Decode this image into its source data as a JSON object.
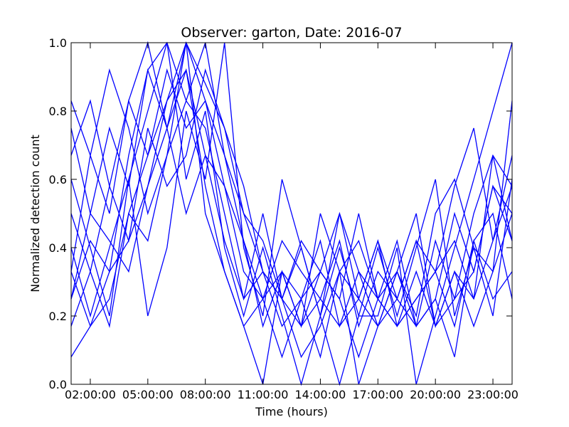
{
  "chart_data": {
    "type": "line",
    "title": "Observer: garton, Date: 2016-07",
    "xlabel": "Time (hours)",
    "ylabel": "Normalized detection count",
    "series_color": "#0000ff",
    "x_range_hours": [
      1,
      24
    ],
    "xlim_hours": [
      1,
      24
    ],
    "ylim": [
      0,
      1
    ],
    "grid": false,
    "legend": "none",
    "x_ticks": [
      {
        "hour": 2,
        "label": "02:00:00"
      },
      {
        "hour": 5,
        "label": "05:00:00"
      },
      {
        "hour": 8,
        "label": "08:00:00"
      },
      {
        "hour": 11,
        "label": "11:00:00"
      },
      {
        "hour": 14,
        "label": "14:00:00"
      },
      {
        "hour": 17,
        "label": "17:00:00"
      },
      {
        "hour": 20,
        "label": "20:00:00"
      },
      {
        "hour": 23,
        "label": "23:00:00"
      }
    ],
    "y_ticks": [
      {
        "value": 0.0,
        "label": "0.0"
      },
      {
        "value": 0.2,
        "label": "0.2"
      },
      {
        "value": 0.4,
        "label": "0.4"
      },
      {
        "value": 0.6,
        "label": "0.6"
      },
      {
        "value": 0.8,
        "label": "0.8"
      },
      {
        "value": 1.0,
        "label": "1.0"
      }
    ],
    "series": [
      {
        "values": [
          0.33,
          0.67,
          0.5,
          0.83,
          1.0,
          0.75,
          1.0,
          0.88,
          0.75,
          0.5,
          0.33,
          0.25,
          0.4,
          0.2,
          0.5,
          0.33,
          0.17,
          0.33,
          0.2,
          0.5,
          0.6,
          0.4,
          0.33,
          0.5
        ]
      },
      {
        "values": [
          0.25,
          0.5,
          0.75,
          0.58,
          0.92,
          1.0,
          0.83,
          1.0,
          0.67,
          0.42,
          0.17,
          0.33,
          0.25,
          0.08,
          0.33,
          0.25,
          0.42,
          0.17,
          0.25,
          0.33,
          0.58,
          0.75,
          0.42,
          0.67
        ]
      },
      {
        "values": [
          0.6,
          0.4,
          0.2,
          0.6,
          0.8,
          1.0,
          0.6,
          0.8,
          0.4,
          0.2,
          0.4,
          0.2,
          0.0,
          0.2,
          0.4,
          0.2,
          0.2,
          0.4,
          0.0,
          0.2,
          0.4,
          0.6,
          0.8,
          1.0
        ]
      },
      {
        "values": [
          0.08,
          0.17,
          0.33,
          0.42,
          0.58,
          0.75,
          0.92,
          0.67,
          0.58,
          0.33,
          0.25,
          0.33,
          0.17,
          0.25,
          0.42,
          0.17,
          0.33,
          0.25,
          0.17,
          0.42,
          0.25,
          0.33,
          0.58,
          0.42
        ]
      },
      {
        "values": [
          0.83,
          0.67,
          0.92,
          0.75,
          0.5,
          0.67,
          0.83,
          0.75,
          0.5,
          0.25,
          0.33,
          0.17,
          0.25,
          0.33,
          0.25,
          0.5,
          0.25,
          0.17,
          0.33,
          0.17,
          0.25,
          0.5,
          0.67,
          0.58
        ]
      },
      {
        "values": [
          0.5,
          0.33,
          0.17,
          0.5,
          0.67,
          0.83,
          1.0,
          0.5,
          0.33,
          0.17,
          0.0,
          0.33,
          0.17,
          0.5,
          0.33,
          0.0,
          0.17,
          0.33,
          0.5,
          0.17,
          0.33,
          0.17,
          0.33,
          0.83
        ]
      },
      {
        "values": [
          0.17,
          0.33,
          0.58,
          0.83,
          0.67,
          0.92,
          0.75,
          0.83,
          0.58,
          0.42,
          0.25,
          0.42,
          0.33,
          0.25,
          0.17,
          0.25,
          0.42,
          0.25,
          0.42,
          0.33,
          0.17,
          0.42,
          0.25,
          0.33
        ]
      },
      {
        "values": [
          0.67,
          0.83,
          0.58,
          0.42,
          0.75,
          0.58,
          0.67,
          0.92,
          0.75,
          0.58,
          0.33,
          0.25,
          0.08,
          0.17,
          0.33,
          0.42,
          0.25,
          0.33,
          0.17,
          0.25,
          0.5,
          0.33,
          0.58,
          0.5
        ]
      },
      {
        "values": [
          0.4,
          0.2,
          0.4,
          0.6,
          0.2,
          0.4,
          0.8,
          0.6,
          1.0,
          0.4,
          0.2,
          0.6,
          0.4,
          0.2,
          0.0,
          0.2,
          0.4,
          0.2,
          0.4,
          0.6,
          0.2,
          0.4,
          0.2,
          0.6
        ]
      },
      {
        "values": [
          0.25,
          0.42,
          0.33,
          0.67,
          0.92,
          0.75,
          0.5,
          0.67,
          0.42,
          0.25,
          0.5,
          0.25,
          0.42,
          0.33,
          0.25,
          0.08,
          0.25,
          0.17,
          0.25,
          0.33,
          0.42,
          0.25,
          0.67,
          0.42
        ]
      },
      {
        "values": [
          0.75,
          0.5,
          0.42,
          0.33,
          0.58,
          0.83,
          0.92,
          0.58,
          0.33,
          0.17,
          0.25,
          0.08,
          0.25,
          0.42,
          0.17,
          0.33,
          0.25,
          0.42,
          0.17,
          0.25,
          0.08,
          0.42,
          0.5,
          0.25
        ]
      },
      {
        "values": [
          0.33,
          0.17,
          0.25,
          0.5,
          0.42,
          0.67,
          1.0,
          0.83,
          0.67,
          0.5,
          0.42,
          0.25,
          0.17,
          0.33,
          0.5,
          0.25,
          0.17,
          0.25,
          0.42,
          0.17,
          0.33,
          0.25,
          0.42,
          0.58
        ]
      }
    ]
  }
}
